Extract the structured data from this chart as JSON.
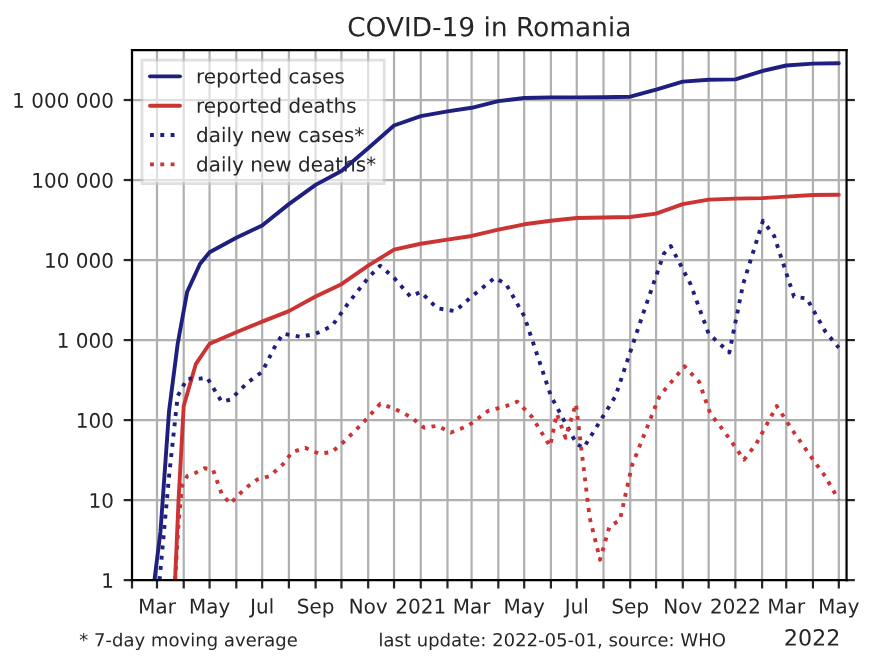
{
  "chart_data": {
    "type": "line",
    "title": "COVID-19 in Romania",
    "log": "y",
    "grid": true,
    "legend": "top left",
    "xlim": [
      "2020-02-01",
      "2022-05-10"
    ],
    "xticks": [
      {
        "value": "2020-02-01",
        "label": null
      },
      {
        "value": "2020-03-01",
        "label": "Mar"
      },
      {
        "value": "2020-04-01",
        "label": null
      },
      {
        "value": "2020-05-01",
        "label": "May"
      },
      {
        "value": "2020-06-01",
        "label": null
      },
      {
        "value": "2020-07-01",
        "label": "Jul"
      },
      {
        "value": "2020-08-01",
        "label": null
      },
      {
        "value": "2020-09-01",
        "label": "Sep"
      },
      {
        "value": "2020-10-01",
        "label": null
      },
      {
        "value": "2020-11-01",
        "label": "Nov"
      },
      {
        "value": "2020-12-01",
        "label": null
      },
      {
        "value": "2021-01-01",
        "label": "2021"
      },
      {
        "value": "2021-02-01",
        "label": null
      },
      {
        "value": "2021-03-01",
        "label": "Mar"
      },
      {
        "value": "2021-04-01",
        "label": null
      },
      {
        "value": "2021-05-01",
        "label": "May"
      },
      {
        "value": "2021-06-01",
        "label": null
      },
      {
        "value": "2021-07-01",
        "label": "Jul"
      },
      {
        "value": "2021-08-01",
        "label": null
      },
      {
        "value": "2021-09-01",
        "label": "Sep"
      },
      {
        "value": "2021-10-01",
        "label": null
      },
      {
        "value": "2021-11-01",
        "label": "Nov"
      },
      {
        "value": "2021-12-01",
        "label": null
      },
      {
        "value": "2022-01-01",
        "label": "2022"
      },
      {
        "value": "2022-02-01",
        "label": null
      },
      {
        "value": "2022-03-01",
        "label": "Mar"
      },
      {
        "value": "2022-04-01",
        "label": null
      },
      {
        "value": "2022-05-01",
        "label": "May"
      }
    ],
    "ylim": [
      1,
      4200000
    ],
    "yticks": [
      1,
      10,
      100,
      {
        "value": 1000,
        "label": "1 000"
      },
      {
        "value": 10000,
        "label": "10 000"
      },
      {
        "value": 100000,
        "label": "100 000"
      },
      {
        "value": 1000000,
        "label": "1 000 000"
      }
    ],
    "annotations": [
      "* 7-day moving average",
      "last update: 2022-05-01, source: WHO",
      "2022"
    ],
    "series": [
      {
        "name": "reported cases",
        "color": "#1f1f7f",
        "line_style": "solid",
        "x": [
          "2020-02-27",
          "2020-03-05",
          "2020-03-15",
          "2020-03-25",
          "2020-04-05",
          "2020-04-20",
          "2020-05-01",
          "2020-06-01",
          "2020-07-01",
          "2020-08-01",
          "2020-09-01",
          "2020-10-01",
          "2020-11-01",
          "2020-12-01",
          "2021-01-01",
          "2021-02-01",
          "2021-03-01",
          "2021-04-01",
          "2021-05-01",
          "2021-06-01",
          "2021-07-01",
          "2021-08-01",
          "2021-09-01",
          "2021-10-01",
          "2021-11-01",
          "2021-12-01",
          "2022-01-01",
          "2022-02-01",
          "2022-03-01",
          "2022-04-01",
          "2022-05-01"
        ],
        "values": [
          1,
          4,
          130,
          900,
          4000,
          9000,
          12500,
          19000,
          27000,
          50000,
          87000,
          130000,
          250000,
          480000,
          630000,
          720000,
          800000,
          970000,
          1060000,
          1080000,
          1081000,
          1083000,
          1100000,
          1350000,
          1700000,
          1790000,
          1810000,
          2300000,
          2700000,
          2850000,
          2880000
        ]
      },
      {
        "name": "reported deaths",
        "color": "#cc3333",
        "line_style": "solid",
        "x": [
          "2020-03-22",
          "2020-03-26",
          "2020-04-01",
          "2020-04-15",
          "2020-05-01",
          "2020-06-01",
          "2020-07-01",
          "2020-08-01",
          "2020-09-01",
          "2020-10-01",
          "2020-11-01",
          "2020-12-01",
          "2021-01-01",
          "2021-02-01",
          "2021-03-01",
          "2021-04-01",
          "2021-05-01",
          "2021-06-01",
          "2021-07-01",
          "2021-08-01",
          "2021-09-01",
          "2021-10-01",
          "2021-11-01",
          "2021-12-01",
          "2022-01-01",
          "2022-02-01",
          "2022-03-01",
          "2022-04-01",
          "2022-05-01"
        ],
        "values": [
          1,
          10,
          150,
          500,
          900,
          1250,
          1700,
          2300,
          3500,
          5000,
          8500,
          13500,
          16000,
          18000,
          20000,
          24000,
          28000,
          31000,
          33500,
          34000,
          34500,
          38000,
          50000,
          57000,
          58500,
          59500,
          62000,
          65000,
          65500
        ]
      },
      {
        "name": "daily new cases*",
        "color": "#1f1f7f",
        "line_style": "dotted",
        "x": [
          "2020-03-04",
          "2020-03-15",
          "2020-03-25",
          "2020-04-05",
          "2020-04-20",
          "2020-04-28",
          "2020-05-15",
          "2020-05-25",
          "2020-06-15",
          "2020-07-01",
          "2020-07-15",
          "2020-07-25",
          "2020-08-15",
          "2020-09-01",
          "2020-09-20",
          "2020-10-10",
          "2020-11-01",
          "2020-11-15",
          "2020-12-01",
          "2020-12-20",
          "2021-01-01",
          "2021-01-20",
          "2021-02-10",
          "2021-03-01",
          "2021-03-28",
          "2021-04-10",
          "2021-05-01",
          "2021-06-01",
          "2021-07-01",
          "2021-07-09",
          "2021-08-15",
          "2021-09-15",
          "2021-10-10",
          "2021-10-18",
          "2021-11-10",
          "2021-12-01",
          "2021-12-25",
          "2022-01-10",
          "2022-02-02",
          "2022-02-15",
          "2022-03-10",
          "2022-03-25",
          "2022-04-15",
          "2022-05-01"
        ],
        "values": [
          1,
          20,
          200,
          330,
          330,
          340,
          170,
          180,
          300,
          400,
          800,
          1200,
          1100,
          1200,
          1500,
          3000,
          6000,
          8500,
          6000,
          3500,
          4000,
          2500,
          2300,
          3500,
          6000,
          5000,
          2000,
          200,
          50,
          45,
          200,
          2000,
          12000,
          15000,
          5000,
          1200,
          700,
          5000,
          31000,
          20000,
          3500,
          3300,
          1300,
          800
        ]
      },
      {
        "name": "daily new deaths*",
        "color": "#cc3333",
        "line_style": "dotted",
        "x": [
          "2020-03-22",
          "2020-03-26",
          "2020-03-30",
          "2020-04-05",
          "2020-04-15",
          "2020-04-25",
          "2020-05-05",
          "2020-05-15",
          "2020-05-25",
          "2020-06-05",
          "2020-06-15",
          "2020-06-25",
          "2020-07-10",
          "2020-07-25",
          "2020-08-05",
          "2020-08-20",
          "2020-09-05",
          "2020-09-20",
          "2020-10-05",
          "2020-10-25",
          "2020-11-15",
          "2020-12-01",
          "2020-12-20",
          "2021-01-05",
          "2021-01-20",
          "2021-02-05",
          "2021-02-25",
          "2021-03-20",
          "2021-04-10",
          "2021-04-23",
          "2021-05-10",
          "2021-05-31",
          "2021-06-08",
          "2021-06-18",
          "2021-06-30",
          "2021-07-16",
          "2021-07-28",
          "2021-08-08",
          "2021-08-20",
          "2021-09-03",
          "2021-10-05",
          "2021-11-03",
          "2021-11-20",
          "2021-12-03",
          "2021-12-20",
          "2022-01-11",
          "2022-01-25",
          "2022-02-18",
          "2022-03-10",
          "2022-04-05",
          "2022-04-15",
          "2022-05-01"
        ],
        "values": [
          1,
          5,
          15,
          20,
          22,
          25,
          24,
          12,
          9,
          12,
          15,
          18,
          20,
          28,
          40,
          45,
          38,
          40,
          55,
          90,
          160,
          140,
          110,
          80,
          85,
          70,
          85,
          130,
          150,
          170,
          110,
          47,
          120,
          60,
          160,
          6,
          1.8,
          4.7,
          5.6,
          27,
          200,
          470,
          300,
          120,
          70,
          32,
          50,
          150,
          70,
          28,
          20,
          10
        ]
      }
    ]
  }
}
